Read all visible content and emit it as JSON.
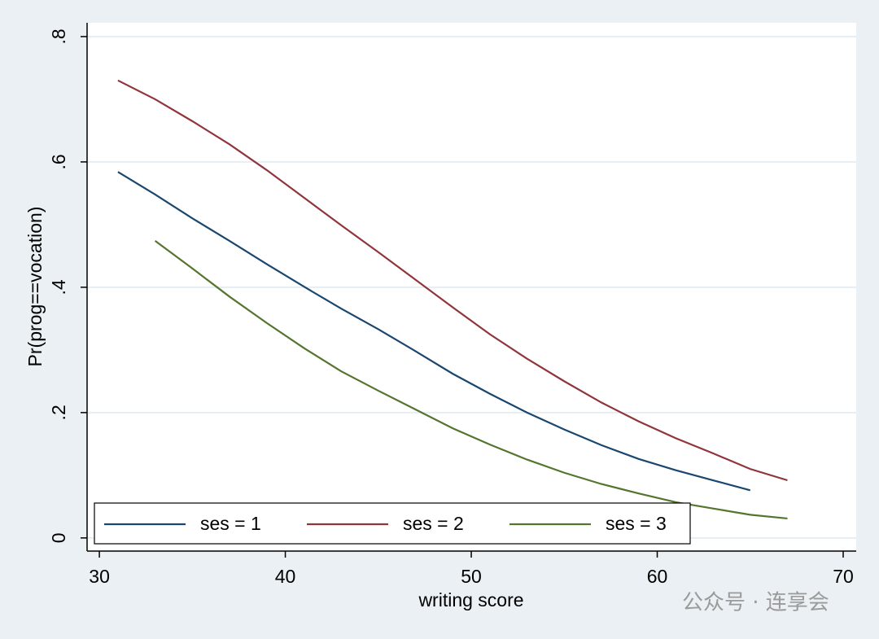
{
  "chart_data": {
    "type": "line",
    "x_label": "writing score",
    "y_label": "Pr(prog==vocation)",
    "x": [
      31,
      33,
      35,
      37,
      39,
      41,
      43,
      45,
      47,
      49,
      51,
      53,
      55,
      57,
      59,
      61,
      63,
      65,
      67
    ],
    "series": [
      {
        "name": "ses = 1",
        "color": "#1a476f",
        "values": [
          0.584,
          0.548,
          0.51,
          0.474,
          0.437,
          0.401,
          0.366,
          0.333,
          0.298,
          0.262,
          0.23,
          0.2,
          0.173,
          0.148,
          0.126,
          0.108,
          0.092,
          0.076,
          null
        ]
      },
      {
        "name": "ses = 2",
        "color": "#90353b",
        "values": [
          0.73,
          0.7,
          0.665,
          0.628,
          0.587,
          0.543,
          0.499,
          0.456,
          0.412,
          0.368,
          0.325,
          0.286,
          0.25,
          0.216,
          0.186,
          0.159,
          0.135,
          0.11,
          0.092
        ]
      },
      {
        "name": "ses = 3",
        "color": "#55752f",
        "values": [
          null,
          0.474,
          0.43,
          0.385,
          0.343,
          0.303,
          0.266,
          0.235,
          0.205,
          0.175,
          0.149,
          0.125,
          0.104,
          0.086,
          0.071,
          0.057,
          0.047,
          0.037,
          0.031
        ]
      }
    ],
    "xlim": [
      29.34,
      70.7
    ],
    "xticks": [
      30,
      40,
      50,
      60,
      70
    ],
    "ylim": [
      -0.021,
      0.822
    ],
    "yticks": [
      {
        "value": 0,
        "label": "0"
      },
      {
        "value": 0.2,
        "label": ".2"
      },
      {
        "value": 0.4,
        "label": ".4"
      },
      {
        "value": 0.6,
        "label": ".6"
      },
      {
        "value": 0.8,
        "label": ".8"
      }
    ],
    "grid": true,
    "legend": "bottom",
    "watermark": "公众号 · 连享会"
  }
}
